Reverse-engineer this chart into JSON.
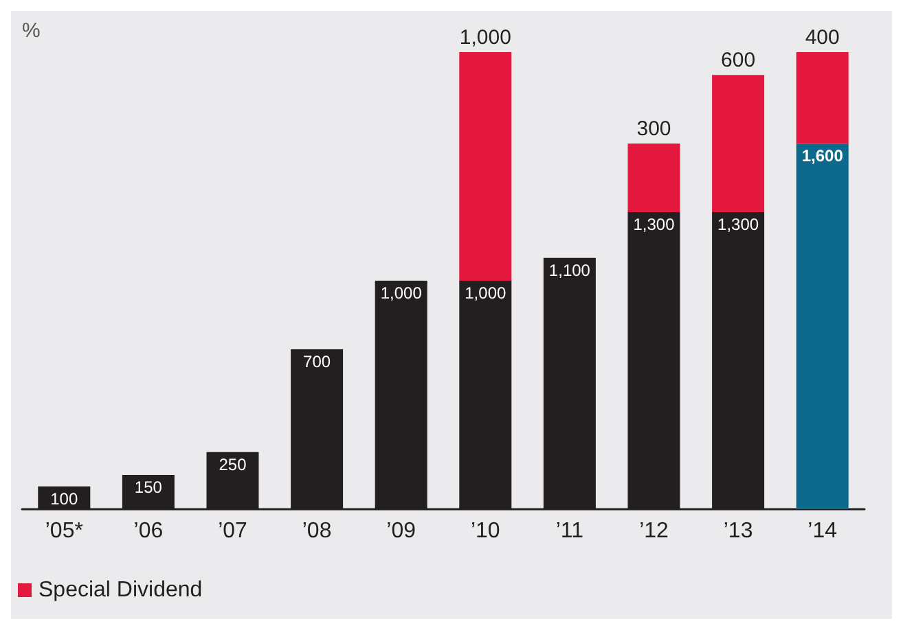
{
  "chart_data": {
    "type": "bar",
    "ylabel": "%",
    "stacked": true,
    "legend": "bottom left",
    "grid": false,
    "categories": [
      "’05*",
      "’06",
      "’07",
      "’08",
      "’09",
      "’10",
      "’11",
      "’12",
      "’13",
      "’14"
    ],
    "series": [
      {
        "colors": [
          "#231f20",
          "#231f20",
          "#231f20",
          "#231f20",
          "#231f20",
          "#231f20",
          "#231f20",
          "#231f20",
          "#231f20",
          "#0e6a8c"
        ],
        "values": [
          100,
          150,
          250,
          700,
          1000,
          1000,
          1100,
          1300,
          1300,
          1600
        ],
        "value_labels": [
          "100",
          "150",
          "250",
          "700",
          "1,000",
          "1,000",
          "1,100",
          "1,300",
          "1,300",
          "1,600"
        ]
      },
      {
        "name": "Special Dividend",
        "color": "#e4173e",
        "values": [
          null,
          null,
          null,
          null,
          null,
          1000,
          null,
          300,
          600,
          400
        ],
        "value_labels": [
          null,
          null,
          null,
          null,
          null,
          "1,000",
          null,
          "300",
          "600",
          "400"
        ]
      }
    ]
  }
}
